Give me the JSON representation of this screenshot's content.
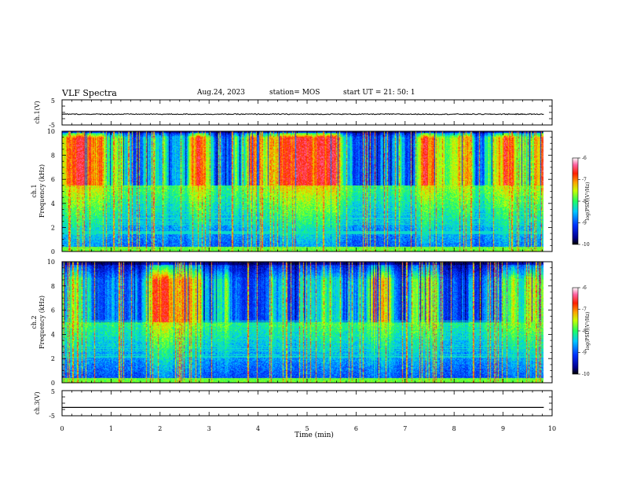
{
  "header": {
    "title": "VLF Spectra",
    "date": "Aug.24, 2023",
    "station": "station= MOS",
    "start": "start  UT =   21: 50: 1"
  },
  "colorbar": {
    "label": "log(PSD)(V²/Hz)",
    "ticks": [
      "-6",
      "-7",
      "-8",
      "-9",
      "-10"
    ]
  },
  "chart_data": [
    {
      "type": "line",
      "name": "ch.1 waveform",
      "ylabel": "ch.1(V)",
      "yticks": [
        "5",
        "-5"
      ],
      "ylim": [
        -5,
        5
      ],
      "xlim": [
        0,
        10
      ],
      "x": [
        0,
        1,
        2,
        3,
        4,
        5,
        6,
        7,
        8,
        9,
        9.83
      ],
      "y": [
        -0.7,
        -0.7,
        -0.7,
        -0.7,
        -0.7,
        -0.7,
        -0.7,
        -0.7,
        -0.7,
        -0.7,
        -0.7
      ]
    },
    {
      "type": "heatmap",
      "name": "ch.1 spectrogram",
      "ylabel": "ch.1\nFrequency (kHz)",
      "yticks": [
        "0",
        "2",
        "4",
        "6",
        "8",
        "10"
      ],
      "ylim": [
        0,
        10
      ],
      "xlim": [
        0,
        10
      ],
      "data_end_min": 9.83,
      "color_scale": [
        -10,
        -6
      ],
      "band_kHz": [
        5.5,
        9.5
      ],
      "band_level": -6.7
    },
    {
      "type": "heatmap",
      "name": "ch.2 spectrogram",
      "ylabel": "ch.2\nFrequency (kHz)",
      "yticks": [
        "0",
        "2",
        "4",
        "6",
        "8",
        "10"
      ],
      "ylim": [
        0,
        10
      ],
      "xlim": [
        0,
        10
      ],
      "data_end_min": 9.83,
      "color_scale": [
        -10,
        -6
      ],
      "band_kHz": [
        5.0,
        8.5
      ],
      "band_level": -6.8
    },
    {
      "type": "line",
      "name": "ch.3 waveform",
      "ylabel": "ch.3(V)",
      "yticks": [
        "5",
        "-5"
      ],
      "ylim": [
        -5,
        5
      ],
      "xlim": [
        0,
        10
      ],
      "x": [
        0,
        9.83
      ],
      "y": [
        -1.7,
        -1.7
      ],
      "xlabel": "Time (min)",
      "xticks": [
        "0",
        "1",
        "2",
        "3",
        "4",
        "5",
        "6",
        "7",
        "8",
        "9",
        "10"
      ]
    }
  ]
}
